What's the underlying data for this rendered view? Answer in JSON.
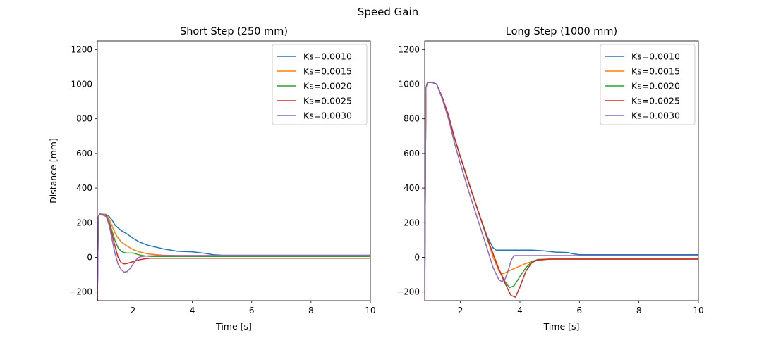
{
  "figure": {
    "suptitle": "Speed Gain"
  },
  "chart_data": [
    {
      "type": "line",
      "title": "Short Step (250 mm)",
      "xlabel": "Time [s]",
      "ylabel": "Distance [mm]",
      "xlim": [
        0.8,
        10
      ],
      "ylim": [
        -250,
        1250
      ],
      "xticks": [
        2,
        4,
        6,
        8,
        10
      ],
      "yticks": [
        -200,
        0,
        200,
        400,
        600,
        800,
        1000,
        1200
      ],
      "xtick_labels": [
        "2",
        "4",
        "6",
        "8",
        "10"
      ],
      "ytick_labels": [
        "−200",
        "0",
        "200",
        "400",
        "600",
        "800",
        "1000",
        "1200"
      ],
      "grid": false,
      "legend": "top-right",
      "series": [
        {
          "name": "Ks=0.0010",
          "color": "#1f77b4",
          "x": [
            0.8,
            0.83,
            0.87,
            0.9,
            1.1,
            1.2,
            1.3,
            1.4,
            1.6,
            1.8,
            2.0,
            2.2,
            2.5,
            3.0,
            3.5,
            4.0,
            4.4,
            4.7,
            5.0,
            6.0,
            8.0,
            10.0
          ],
          "y": [
            -250,
            230,
            250,
            250,
            248,
            235,
            215,
            185,
            155,
            135,
            110,
            90,
            70,
            50,
            35,
            32,
            24,
            15,
            12,
            12,
            12,
            12
          ]
        },
        {
          "name": "Ks=0.0015",
          "color": "#ff7f0e",
          "x": [
            0.8,
            0.83,
            0.87,
            0.9,
            1.1,
            1.2,
            1.3,
            1.4,
            1.5,
            1.6,
            1.8,
            2.0,
            2.2,
            2.5,
            3.0,
            3.5,
            4.0,
            6.0,
            8.0,
            10.0
          ],
          "y": [
            -250,
            230,
            250,
            250,
            245,
            220,
            180,
            140,
            110,
            90,
            65,
            45,
            32,
            20,
            12,
            10,
            10,
            10,
            10,
            10
          ]
        },
        {
          "name": "Ks=0.0020",
          "color": "#2ca02c",
          "x": [
            0.8,
            0.83,
            0.87,
            0.9,
            1.1,
            1.2,
            1.3,
            1.4,
            1.5,
            1.6,
            1.7,
            1.8,
            2.0,
            2.2,
            2.4,
            2.6,
            3.0,
            4.0,
            6.0,
            8.0,
            10.0
          ],
          "y": [
            -250,
            230,
            250,
            250,
            240,
            205,
            150,
            95,
            55,
            35,
            28,
            25,
            25,
            15,
            8,
            5,
            5,
            5,
            5,
            5,
            5
          ]
        },
        {
          "name": "Ks=0.0025",
          "color": "#d62728",
          "x": [
            0.8,
            0.83,
            0.87,
            0.9,
            1.1,
            1.2,
            1.3,
            1.4,
            1.5,
            1.6,
            1.7,
            1.8,
            1.9,
            2.0,
            2.2,
            2.4,
            2.6,
            3.0,
            4.0,
            6.0,
            8.0,
            10.0
          ],
          "y": [
            -250,
            230,
            250,
            250,
            238,
            195,
            130,
            60,
            0,
            -30,
            -38,
            -35,
            -30,
            -25,
            -15,
            -8,
            -5,
            -5,
            -5,
            -5,
            -5,
            -5
          ]
        },
        {
          "name": "Ks=0.0030",
          "color": "#9467bd",
          "x": [
            0.8,
            0.83,
            0.87,
            0.9,
            1.1,
            1.2,
            1.3,
            1.4,
            1.5,
            1.6,
            1.7,
            1.8,
            1.9,
            2.0,
            2.1,
            2.2,
            2.3,
            2.5,
            3.0,
            4.0,
            6.0,
            8.0,
            10.0
          ],
          "y": [
            -250,
            230,
            250,
            250,
            235,
            185,
            100,
            20,
            -40,
            -70,
            -85,
            -82,
            -65,
            -40,
            -15,
            0,
            5,
            8,
            10,
            10,
            10,
            10,
            10
          ]
        }
      ]
    },
    {
      "type": "line",
      "title": "Long Step (1000 mm)",
      "xlabel": "Time [s]",
      "ylabel": "",
      "xlim": [
        0.8,
        10
      ],
      "ylim": [
        -250,
        1250
      ],
      "xticks": [
        2,
        4,
        6,
        8,
        10
      ],
      "yticks": [
        -200,
        0,
        200,
        400,
        600,
        800,
        1000,
        1200
      ],
      "xtick_labels": [
        "2",
        "4",
        "6",
        "8",
        "10"
      ],
      "ytick_labels": [
        "−200",
        "0",
        "200",
        "400",
        "600",
        "800",
        "1000",
        "1200"
      ],
      "grid": false,
      "legend": "top-right",
      "series": [
        {
          "name": "Ks=0.0010",
          "color": "#1f77b4",
          "x": [
            0.8,
            0.84,
            0.9,
            1.05,
            1.2,
            1.4,
            1.6,
            1.8,
            2.0,
            2.3,
            2.6,
            2.9,
            3.1,
            3.2,
            3.4,
            3.8,
            4.4,
            4.8,
            5.2,
            5.6,
            5.8,
            6.0,
            7.0,
            8.0,
            10.0
          ],
          "y": [
            -250,
            980,
            1010,
            1010,
            1000,
            920,
            820,
            690,
            580,
            420,
            265,
            120,
            55,
            42,
            42,
            42,
            42,
            38,
            30,
            28,
            20,
            15,
            15,
            15,
            15
          ]
        },
        {
          "name": "Ks=0.0015",
          "color": "#ff7f0e",
          "x": [
            0.8,
            0.84,
            0.9,
            1.05,
            1.2,
            1.4,
            1.6,
            1.8,
            2.0,
            2.3,
            2.6,
            2.9,
            3.1,
            3.3,
            3.4,
            3.5,
            3.6,
            3.8,
            4.0,
            4.2,
            4.4,
            4.6,
            5.0,
            6.0,
            8.0,
            10.0
          ],
          "y": [
            -250,
            980,
            1010,
            1010,
            1000,
            920,
            820,
            690,
            580,
            420,
            265,
            110,
            0,
            -80,
            -95,
            -90,
            -80,
            -65,
            -50,
            -35,
            -25,
            -18,
            -10,
            -10,
            -10,
            -10
          ]
        },
        {
          "name": "Ks=0.0020",
          "color": "#2ca02c",
          "x": [
            0.8,
            0.84,
            0.9,
            1.05,
            1.2,
            1.4,
            1.6,
            1.8,
            2.0,
            2.3,
            2.6,
            2.9,
            3.1,
            3.3,
            3.5,
            3.65,
            3.8,
            4.0,
            4.2,
            4.4,
            4.6,
            5.0,
            6.0,
            8.0,
            10.0
          ],
          "y": [
            -250,
            980,
            1010,
            1010,
            1000,
            920,
            820,
            690,
            580,
            420,
            265,
            110,
            20,
            -70,
            -140,
            -175,
            -165,
            -110,
            -60,
            -25,
            -12,
            -10,
            -10,
            -10,
            -10
          ]
        },
        {
          "name": "Ks=0.0025",
          "color": "#d62728",
          "x": [
            0.8,
            0.84,
            0.9,
            1.05,
            1.2,
            1.4,
            1.6,
            1.8,
            2.0,
            2.3,
            2.6,
            2.9,
            3.1,
            3.3,
            3.5,
            3.7,
            3.85,
            4.0,
            4.2,
            4.4,
            4.6,
            5.0,
            6.0,
            8.0,
            10.0
          ],
          "y": [
            -250,
            980,
            1010,
            1010,
            1000,
            920,
            820,
            690,
            580,
            420,
            265,
            110,
            20,
            -70,
            -150,
            -220,
            -230,
            -170,
            -80,
            -30,
            -15,
            -10,
            -10,
            -10,
            -10
          ]
        },
        {
          "name": "Ks=0.0030",
          "color": "#9467bd",
          "x": [
            0.8,
            0.84,
            0.9,
            1.05,
            1.2,
            1.4,
            1.6,
            1.8,
            2.0,
            2.3,
            2.6,
            2.9,
            3.1,
            3.3,
            3.4,
            3.5,
            3.6,
            3.7,
            3.8,
            4.0,
            4.5,
            5.0,
            6.0,
            8.0,
            10.0
          ],
          "y": [
            -250,
            980,
            1010,
            1010,
            1000,
            910,
            800,
            660,
            540,
            370,
            210,
            50,
            -60,
            -130,
            -140,
            -125,
            -80,
            -20,
            10,
            10,
            10,
            10,
            10,
            10,
            10
          ]
        }
      ]
    }
  ]
}
